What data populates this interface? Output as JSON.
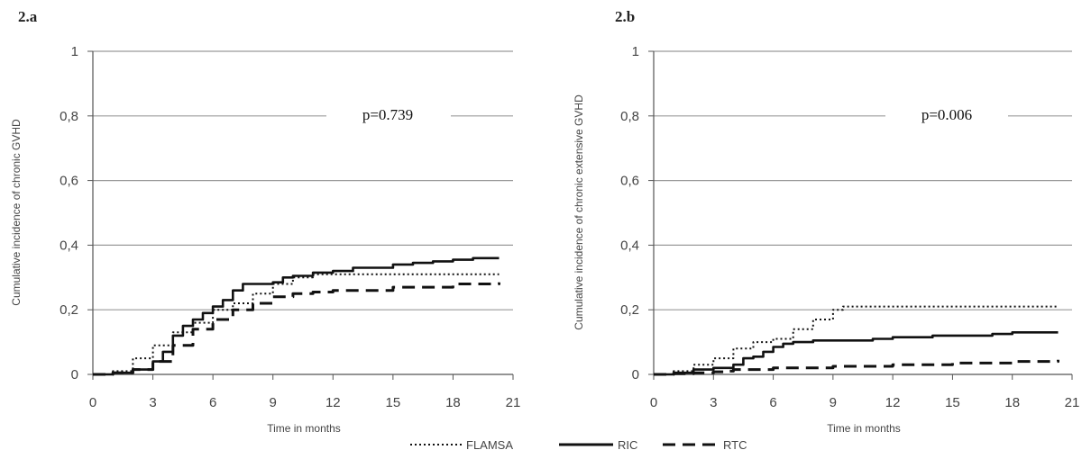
{
  "chart_data": [
    {
      "type": "line",
      "panel_label": "2.a",
      "ylabel": "Cumulative incidence of chronic GVHD",
      "xlabel": "Time in months",
      "ylim": [
        0,
        1
      ],
      "xlim": [
        0,
        21
      ],
      "yticks": [
        "0",
        "0,2",
        "0,4",
        "0,6",
        "0,8",
        "1"
      ],
      "xticks": [
        "0",
        "3",
        "6",
        "9",
        "12",
        "15",
        "18",
        "21"
      ],
      "annotation": "p=0.739",
      "grid": true,
      "series": [
        {
          "name": "FLAMSA",
          "x": [
            0,
            1,
            2,
            3,
            4,
            5,
            6,
            7,
            8,
            9,
            10,
            11,
            12,
            13,
            15,
            17,
            18,
            20.3
          ],
          "y": [
            0,
            0.01,
            0.05,
            0.09,
            0.13,
            0.16,
            0.2,
            0.22,
            0.25,
            0.28,
            0.3,
            0.31,
            0.31,
            0.31,
            0.31,
            0.31,
            0.31,
            0.31
          ]
        },
        {
          "name": "RIC",
          "x": [
            0,
            1,
            2,
            3,
            3.5,
            4,
            4.5,
            5,
            5.5,
            6,
            6.5,
            7,
            7.5,
            8,
            9,
            9.5,
            10,
            11,
            12,
            13,
            15,
            16,
            17,
            18,
            19,
            20.3
          ],
          "y": [
            0,
            0.005,
            0.015,
            0.04,
            0.07,
            0.12,
            0.15,
            0.17,
            0.19,
            0.21,
            0.23,
            0.26,
            0.28,
            0.28,
            0.285,
            0.3,
            0.305,
            0.315,
            0.32,
            0.33,
            0.34,
            0.345,
            0.35,
            0.355,
            0.36,
            0.36
          ]
        },
        {
          "name": "RTC",
          "x": [
            0,
            1,
            2,
            3,
            4,
            5,
            6,
            7,
            8,
            9,
            10,
            11,
            12,
            15,
            18,
            20.3
          ],
          "y": [
            0,
            0.005,
            0.015,
            0.04,
            0.09,
            0.14,
            0.17,
            0.2,
            0.22,
            0.24,
            0.25,
            0.255,
            0.26,
            0.27,
            0.28,
            0.285
          ]
        }
      ]
    },
    {
      "type": "line",
      "panel_label": "2.b",
      "ylabel": "Cumulative incidence of chronic extensive GVHD",
      "xlabel": "Time in months",
      "ylim": [
        0,
        1
      ],
      "xlim": [
        0,
        21
      ],
      "yticks": [
        "0",
        "0,2",
        "0,4",
        "0,6",
        "0,8",
        "1"
      ],
      "xticks": [
        "0",
        "3",
        "6",
        "9",
        "12",
        "15",
        "18",
        "21"
      ],
      "annotation": "p=0.006",
      "grid": true,
      "series": [
        {
          "name": "FLAMSA",
          "x": [
            0,
            1,
            2,
            3,
            4,
            5,
            6,
            7,
            8,
            9,
            9.5,
            12,
            15,
            18,
            20.3
          ],
          "y": [
            0,
            0.01,
            0.03,
            0.05,
            0.08,
            0.1,
            0.11,
            0.14,
            0.17,
            0.2,
            0.21,
            0.21,
            0.21,
            0.21,
            0.21
          ]
        },
        {
          "name": "RIC",
          "x": [
            0,
            1,
            2,
            3,
            4,
            4.5,
            5,
            5.5,
            6,
            6.5,
            7,
            8,
            9,
            10,
            11,
            12,
            13,
            14,
            15,
            16,
            17,
            18,
            19,
            20.3
          ],
          "y": [
            0,
            0.005,
            0.015,
            0.02,
            0.03,
            0.05,
            0.055,
            0.07,
            0.085,
            0.095,
            0.1,
            0.105,
            0.105,
            0.105,
            0.11,
            0.115,
            0.115,
            0.12,
            0.12,
            0.12,
            0.125,
            0.13,
            0.13,
            0.13
          ]
        },
        {
          "name": "RTC",
          "x": [
            0,
            1,
            2,
            3,
            3.5,
            4,
            6,
            9,
            12,
            15,
            18,
            20.3
          ],
          "y": [
            0,
            0.002,
            0.005,
            0.008,
            0.01,
            0.015,
            0.02,
            0.025,
            0.03,
            0.035,
            0.04,
            0.045
          ]
        }
      ]
    }
  ],
  "legend": [
    {
      "label": "FLAMSA",
      "style": "dotted"
    },
    {
      "label": "RIC",
      "style": "solid"
    },
    {
      "label": "RTC",
      "style": "dashed"
    }
  ],
  "colors": {
    "line": "#111111",
    "grid": "#9a9a9a",
    "axis": "#555555"
  }
}
